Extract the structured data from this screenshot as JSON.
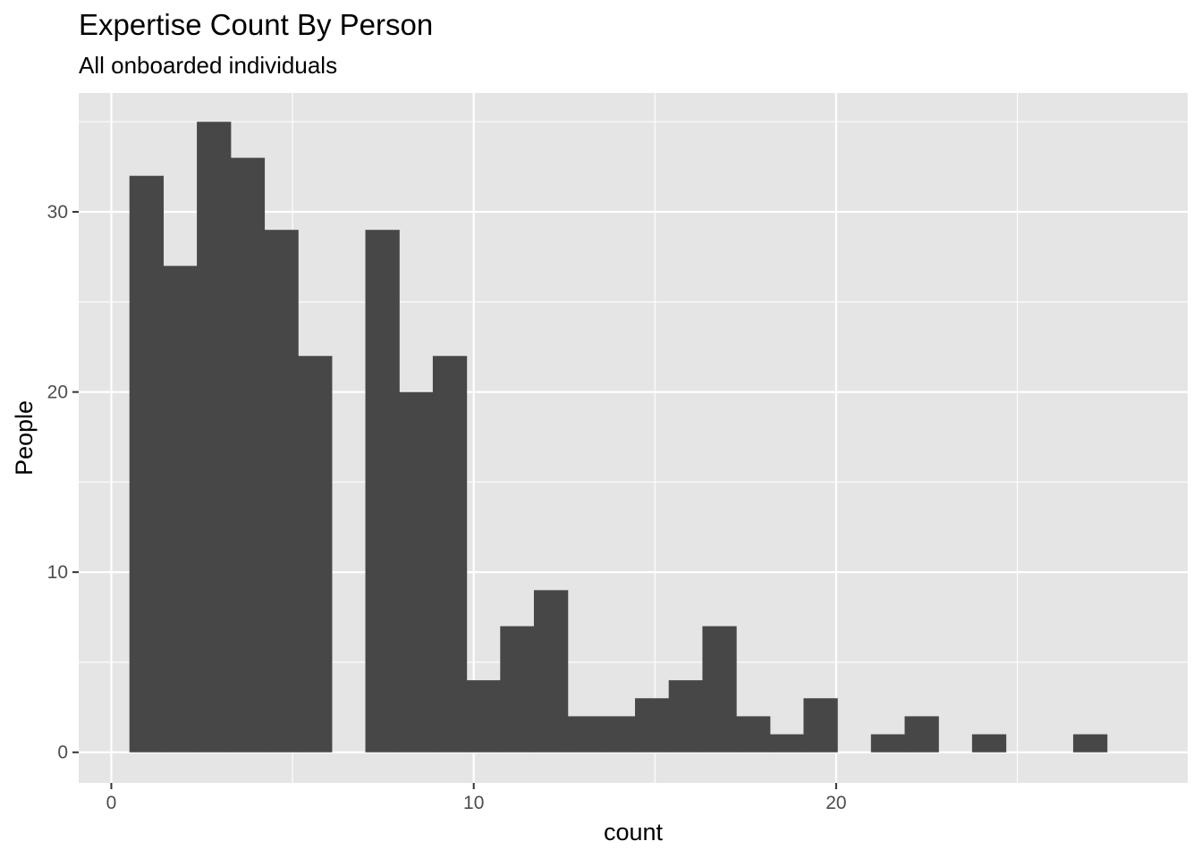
{
  "chart_data": {
    "type": "bar",
    "title": "Expertise Count By Person",
    "subtitle": "All onboarded individuals",
    "xlabel": "count",
    "ylabel": "People",
    "xlim": [
      -0.9,
      29.7
    ],
    "ylim": [
      -1.7,
      36.6
    ],
    "x_ticks": [
      0,
      10,
      20
    ],
    "x_tick_labels": [
      "0",
      "10",
      "20"
    ],
    "y_ticks": [
      0,
      10,
      20,
      30
    ],
    "y_tick_labels": [
      "0",
      "10",
      "20",
      "30"
    ],
    "grid": true,
    "bar_color": "#474747",
    "panel_color": "#e5e5e5",
    "grid_color": "#ffffff",
    "bin_width": 0.93,
    "bin_start": 0.5,
    "values": [
      32,
      27,
      35,
      33,
      29,
      22,
      0,
      29,
      20,
      22,
      4,
      7,
      9,
      2,
      2,
      3,
      4,
      7,
      2,
      1,
      3,
      0,
      1,
      2,
      0,
      1,
      0,
      0,
      1
    ]
  }
}
